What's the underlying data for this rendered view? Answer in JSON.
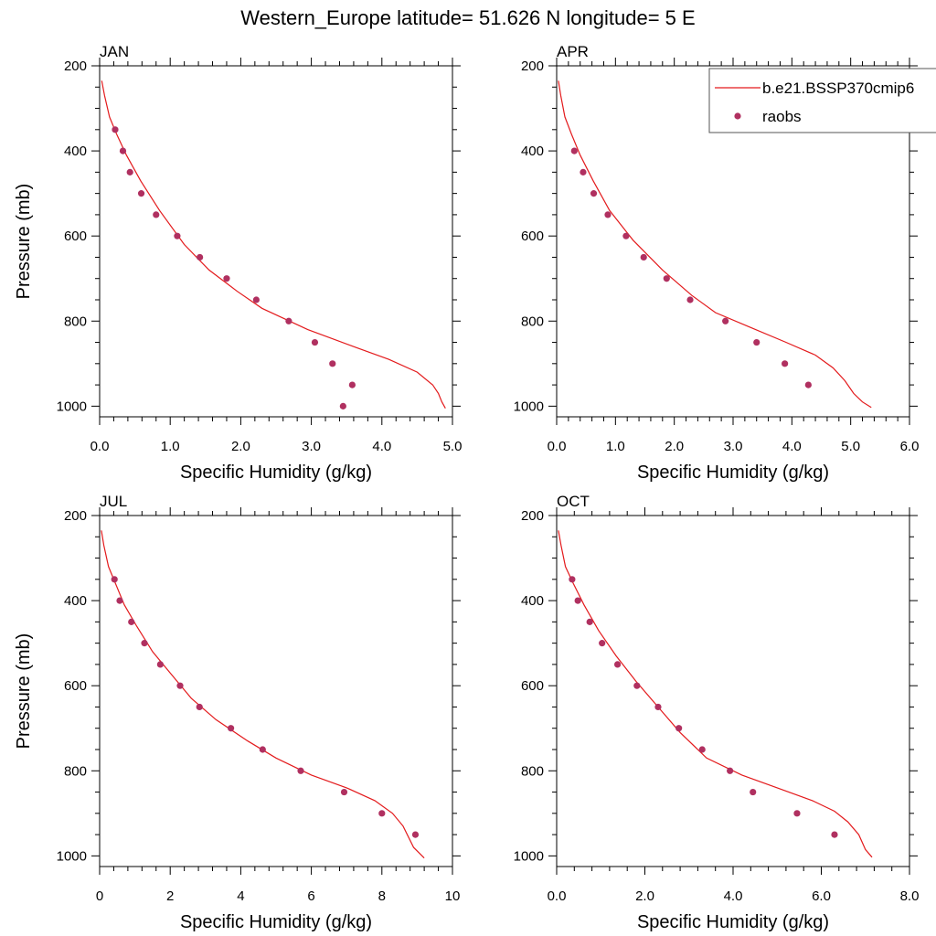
{
  "figure": {
    "title": "Western_Europe  latitude= 51.626 N longitude= 5 E",
    "legend": {
      "position": "top-right",
      "entries": [
        {
          "label": "b.e21.BSSP370cmip6",
          "kind": "line",
          "color": "#e31a1c"
        },
        {
          "label": "raobs",
          "kind": "marker",
          "color": "#b03060"
        }
      ]
    }
  },
  "chart_data": [
    {
      "type": "line",
      "panel": "JAN",
      "title": "JAN",
      "xlabel": "Specific Humidity (g/kg)",
      "ylabel": "Pressure (mb)",
      "xlim": [
        0,
        5
      ],
      "ylim": [
        200,
        1025
      ],
      "y_reversed": true,
      "xticks": [
        0,
        1,
        2,
        3,
        4,
        5
      ],
      "xticklabels": [
        "0.0",
        "1.0",
        "2.0",
        "3.0",
        "4.0",
        "5.0"
      ],
      "yticks": [
        200,
        400,
        600,
        800,
        1000
      ],
      "yticklabels": [
        "200",
        "400",
        "600",
        "800",
        "1000"
      ],
      "series": [
        {
          "name": "b.e21.BSSP370cmip6",
          "kind": "line",
          "x": [
            0.03,
            0.07,
            0.14,
            0.24,
            0.38,
            0.58,
            0.85,
            1.2,
            1.55,
            1.95,
            2.3,
            2.95,
            3.6,
            4.1,
            4.5,
            4.72,
            4.8,
            4.85,
            4.9
          ],
          "y": [
            235,
            270,
            320,
            360,
            410,
            470,
            540,
            620,
            680,
            730,
            770,
            820,
            860,
            890,
            920,
            950,
            970,
            990,
            1005
          ]
        },
        {
          "name": "raobs",
          "kind": "scatter",
          "x": [
            0.22,
            0.33,
            0.43,
            0.59,
            0.8,
            1.1,
            1.42,
            1.8,
            2.22,
            2.68,
            3.05,
            3.3,
            3.58,
            3.45
          ],
          "y": [
            350,
            400,
            450,
            500,
            550,
            600,
            650,
            700,
            750,
            800,
            850,
            900,
            950,
            1000
          ]
        }
      ]
    },
    {
      "type": "line",
      "panel": "APR",
      "title": "APR",
      "xlabel": "Specific Humidity (g/kg)",
      "ylabel": "",
      "xlim": [
        0,
        6
      ],
      "ylim": [
        200,
        1025
      ],
      "y_reversed": true,
      "xticks": [
        0,
        1,
        2,
        3,
        4,
        5,
        6
      ],
      "xticklabels": [
        "0.0",
        "1.0",
        "2.0",
        "3.0",
        "4.0",
        "5.0",
        "6.0"
      ],
      "yticks": [
        200,
        400,
        600,
        800,
        1000
      ],
      "yticklabels": [
        "200",
        "400",
        "600",
        "800",
        "1000"
      ],
      "series": [
        {
          "name": "b.e21.BSSP370cmip6",
          "kind": "line",
          "x": [
            0.03,
            0.07,
            0.14,
            0.25,
            0.4,
            0.62,
            0.9,
            1.3,
            1.8,
            2.3,
            2.7,
            3.3,
            3.9,
            4.4,
            4.7,
            4.9,
            5.05,
            5.2,
            5.35
          ],
          "y": [
            235,
            270,
            320,
            360,
            410,
            470,
            540,
            610,
            680,
            740,
            780,
            815,
            850,
            880,
            910,
            940,
            970,
            990,
            1003
          ]
        },
        {
          "name": "raobs",
          "kind": "scatter",
          "x": [
            0.3,
            0.45,
            0.63,
            0.87,
            1.18,
            1.48,
            1.87,
            2.27,
            2.87,
            3.4,
            3.88,
            4.28
          ],
          "y": [
            400,
            450,
            500,
            550,
            600,
            650,
            700,
            750,
            800,
            850,
            900,
            950
          ]
        }
      ]
    },
    {
      "type": "line",
      "panel": "JUL",
      "title": "JUL",
      "xlabel": "Specific Humidity (g/kg)",
      "ylabel": "Pressure (mb)",
      "xlim": [
        0,
        10
      ],
      "ylim": [
        200,
        1025
      ],
      "y_reversed": true,
      "xticks": [
        0,
        2,
        4,
        6,
        8,
        10
      ],
      "xticklabels": [
        "0",
        "2",
        "4",
        "6",
        "8",
        "10"
      ],
      "yticks": [
        200,
        400,
        600,
        800,
        1000
      ],
      "yticklabels": [
        "200",
        "400",
        "600",
        "800",
        "1000"
      ],
      "series": [
        {
          "name": "b.e21.BSSP370cmip6",
          "kind": "line",
          "x": [
            0.05,
            0.12,
            0.25,
            0.45,
            0.7,
            1.05,
            1.5,
            2.0,
            2.6,
            3.3,
            4.2,
            5.0,
            6.0,
            7.0,
            7.8,
            8.3,
            8.6,
            8.9,
            9.2
          ],
          "y": [
            235,
            270,
            320,
            360,
            410,
            460,
            520,
            570,
            630,
            680,
            730,
            770,
            810,
            840,
            870,
            900,
            930,
            980,
            1005
          ]
        },
        {
          "name": "raobs",
          "kind": "scatter",
          "x": [
            0.42,
            0.57,
            0.9,
            1.27,
            1.72,
            2.28,
            2.83,
            3.72,
            4.62,
            5.7,
            6.93,
            8.0,
            8.95
          ],
          "y": [
            350,
            400,
            450,
            500,
            550,
            600,
            650,
            700,
            750,
            800,
            850,
            900,
            950
          ]
        }
      ]
    },
    {
      "type": "line",
      "panel": "OCT",
      "title": "OCT",
      "xlabel": "Specific Humidity (g/kg)",
      "ylabel": "",
      "xlim": [
        0,
        8
      ],
      "ylim": [
        200,
        1025
      ],
      "y_reversed": true,
      "xticks": [
        0,
        2,
        4,
        6,
        8
      ],
      "xticklabels": [
        "0.0",
        "2.0",
        "4.0",
        "6.0",
        "8.0"
      ],
      "yticks": [
        200,
        400,
        600,
        800,
        1000
      ],
      "yticklabels": [
        "200",
        "400",
        "600",
        "800",
        "1000"
      ],
      "series": [
        {
          "name": "b.e21.BSSP370cmip6",
          "kind": "line",
          "x": [
            0.04,
            0.1,
            0.2,
            0.38,
            0.62,
            0.95,
            1.35,
            1.8,
            2.3,
            2.8,
            3.4,
            4.2,
            5.0,
            5.8,
            6.3,
            6.6,
            6.85,
            7.0,
            7.15
          ],
          "y": [
            235,
            270,
            320,
            360,
            410,
            470,
            530,
            590,
            650,
            710,
            770,
            810,
            840,
            870,
            895,
            920,
            950,
            985,
            1003
          ]
        },
        {
          "name": "raobs",
          "kind": "scatter",
          "x": [
            0.35,
            0.48,
            0.75,
            1.03,
            1.38,
            1.82,
            2.3,
            2.77,
            3.3,
            3.93,
            4.45,
            5.45,
            6.3
          ],
          "y": [
            350,
            400,
            450,
            500,
            550,
            600,
            650,
            700,
            750,
            800,
            850,
            900,
            950
          ]
        }
      ]
    }
  ]
}
